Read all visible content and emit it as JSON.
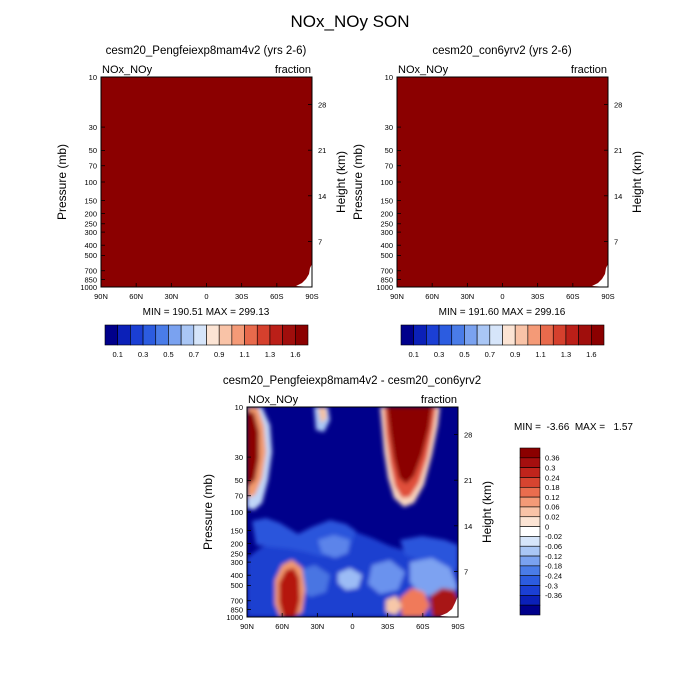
{
  "page_title": "NOx_NOy SON",
  "colors": {
    "saturated": "#8b0000",
    "ocean_blue": "#00008b"
  },
  "chart_data": [
    {
      "type": "heatmap",
      "title": "cesm20_Pengfeiexp8mam4v2 (yrs 2-6)",
      "left_label": "NOx_NOy",
      "right_label": "fraction",
      "ylabel": "Pressure (mb)",
      "ylabel_right": "Height (km)",
      "xticks": [
        "90N",
        "60N",
        "30N",
        "0",
        "30S",
        "60S",
        "90S"
      ],
      "yticks": [
        10,
        30,
        50,
        70,
        100,
        150,
        200,
        250,
        300,
        400,
        500,
        700,
        850,
        1000
      ],
      "yticks_right": [
        28,
        21,
        14,
        7
      ],
      "stats": "MIN = 190.51   MAX = 299.13",
      "colorbar_labels": [
        "0.1",
        "0.3",
        "0.5",
        "0.7",
        "0.9",
        "1.1",
        "1.3",
        "1.6"
      ],
      "field": "uniformly above top contour level (saturated dark red)"
    },
    {
      "type": "heatmap",
      "title": "cesm20_con6yrv2 (yrs 2-6)",
      "left_label": "NOx_NOy",
      "right_label": "fraction",
      "ylabel": "Pressure (mb)",
      "ylabel_right": "Height (km)",
      "xticks": [
        "90N",
        "60N",
        "30N",
        "0",
        "30S",
        "60S",
        "90S"
      ],
      "yticks": [
        10,
        30,
        50,
        70,
        100,
        150,
        200,
        250,
        300,
        400,
        500,
        700,
        850,
        1000
      ],
      "yticks_right": [
        28,
        21,
        14,
        7
      ],
      "stats": "MIN = 191.60   MAX = 299.16",
      "colorbar_labels": [
        "0.1",
        "0.3",
        "0.5",
        "0.7",
        "0.9",
        "1.1",
        "1.3",
        "1.6"
      ],
      "field": "uniformly above top contour level (saturated dark red)"
    },
    {
      "type": "heatmap",
      "title": "cesm20_Pengfeiexp8mam4v2 - cesm20_con6yrv2",
      "left_label": "NOx_NOy",
      "right_label": "fraction",
      "ylabel": "Pressure (mb)",
      "ylabel_right": "Height (km)",
      "xticks": [
        "90N",
        "60N",
        "30N",
        "0",
        "30S",
        "60S",
        "90S"
      ],
      "yticks": [
        10,
        30,
        50,
        70,
        100,
        150,
        200,
        250,
        300,
        400,
        500,
        700,
        850,
        1000
      ],
      "yticks_right": [
        28,
        21,
        14,
        7
      ],
      "stats": "MIN =  -3.66  MAX =   1.57",
      "colorbar_labels": [
        "0.36",
        "0.3",
        "0.24",
        "0.18",
        "0.12",
        "0.06",
        "0.02",
        "0",
        "-0.02",
        "-0.06",
        "-0.12",
        "-0.18",
        "-0.24",
        "-0.3",
        "-0.36"
      ],
      "field": "mostly below -0.36 (dark blue); positive maxima near 20-10mb at 85N-80N and 40S-60S; lower-troposphere positive cores near 55N and 60S-85S"
    }
  ]
}
